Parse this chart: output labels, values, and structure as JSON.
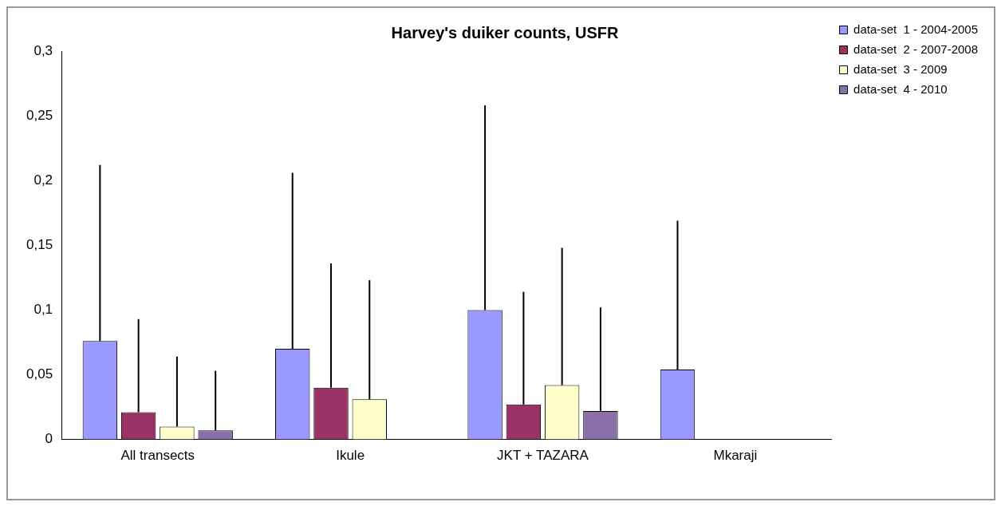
{
  "chart_data": {
    "type": "bar",
    "title": "Harvey's duiker counts, USFR",
    "categories": [
      "All transects",
      "Ikule",
      "JKT + TAZARA",
      "Mkaraji"
    ],
    "series": [
      {
        "name": "data-set  1 - 2004-2005",
        "color": "#9999ff",
        "values": [
          0.076,
          0.07,
          0.1,
          0.054
        ],
        "errors": [
          [
            0.076,
            0.212
          ],
          [
            0.07,
            0.206
          ],
          [
            0.1,
            0.258
          ],
          [
            0.054,
            0.169
          ]
        ]
      },
      {
        "name": "data-set  2 - 2007-2008",
        "color": "#993366",
        "values": [
          0.021,
          0.04,
          0.027,
          null
        ],
        "errors": [
          [
            0.021,
            0.093
          ],
          [
            0.04,
            0.136
          ],
          [
            0.027,
            0.114
          ],
          null
        ]
      },
      {
        "name": "data-set  3 - 2009",
        "color": "#ffffcc",
        "values": [
          0.01,
          0.031,
          0.042,
          null
        ],
        "errors": [
          [
            0.01,
            0.064
          ],
          [
            0.031,
            0.123
          ],
          [
            0.042,
            0.148
          ],
          null
        ]
      },
      {
        "name": "data-set  4 - 2010",
        "color": "#8a6fa8",
        "values": [
          0.007,
          null,
          0.022,
          null
        ],
        "errors": [
          [
            0.007,
            0.053
          ],
          null,
          [
            0.022,
            0.102
          ],
          null
        ]
      }
    ],
    "ylim": [
      0,
      0.3
    ],
    "yticks": [
      0,
      {
        "value": 0.05,
        "label": "0,05"
      },
      {
        "value": 0.1,
        "label": "0,1"
      },
      {
        "value": 0.15,
        "label": "0,15"
      },
      {
        "value": 0.2,
        "label": "0,2"
      },
      {
        "value": 0.25,
        "label": "0,25"
      },
      {
        "value": 0.3,
        "label": "0,3"
      }
    ],
    "grid": false,
    "legend": "top right"
  }
}
